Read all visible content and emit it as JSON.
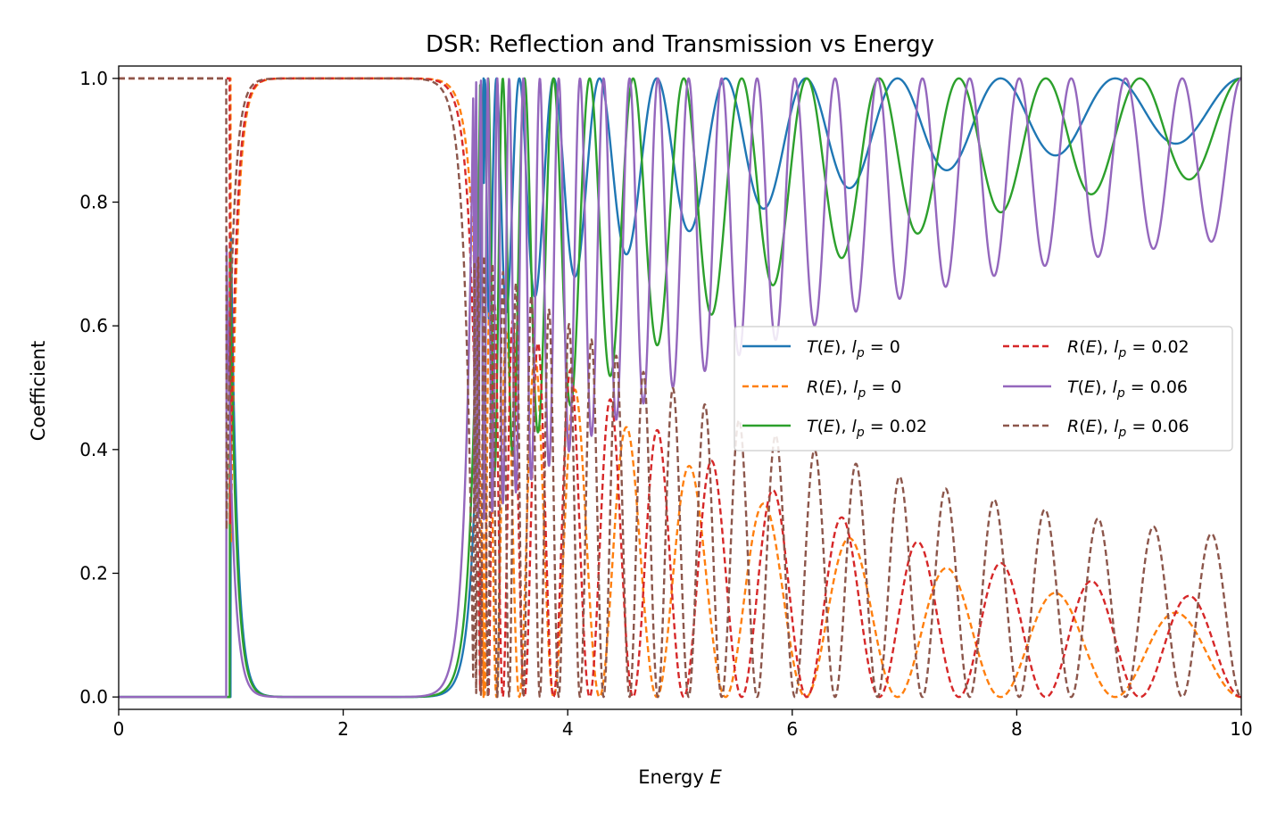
{
  "chart_data": {
    "type": "line",
    "title": "DSR: Reflection and Transmission vs Energy",
    "xlabel_text": "Energy ",
    "xlabel_var": "E",
    "ylabel": "Coefficient",
    "xlim": [
      0,
      10
    ],
    "ylim": [
      -0.02,
      1.02
    ],
    "xticks": [
      0,
      2,
      4,
      6,
      8,
      10
    ],
    "xtick_labels": [
      "0",
      "2",
      "4",
      "6",
      "8",
      "10"
    ],
    "yticks": [
      0.0,
      0.2,
      0.4,
      0.6,
      0.8,
      1.0
    ],
    "ytick_labels": [
      "0.0",
      "0.2",
      "0.4",
      "0.6",
      "0.8",
      "1.0"
    ],
    "legend_location": "center-right",
    "legend_columns": 2,
    "gap_region": {
      "start": 1.0,
      "end": 3.2,
      "value_T": 0.0,
      "value_R": 1.0
    },
    "series": [
      {
        "name": "T(E), l_p = 0",
        "label_fn": "T",
        "lp": "0",
        "kind": "T",
        "color": "#1f77b4",
        "dash": "solid",
        "params": {
          "E0": 1.0,
          "E1": 3.25,
          "depth_start": 0.4,
          "depth_end": 0.06,
          "cycles": 11.5,
          "phase": 0.0
        }
      },
      {
        "name": "R(E), l_p = 0",
        "label_fn": "R",
        "lp": "0",
        "kind": "R",
        "color": "#ff7f0e",
        "dash": "dashed",
        "params": {
          "E0": 1.0,
          "E1": 3.25,
          "depth_start": 0.63,
          "depth_end": 0.06,
          "cycles": 11.5,
          "phase": 0.0
        }
      },
      {
        "name": "T(E), l_p = 0.02",
        "label_fn": "T",
        "lp": "0.02",
        "kind": "T",
        "color": "#2ca02c",
        "dash": "solid",
        "params": {
          "E0": 0.99,
          "E1": 3.22,
          "depth_start": 0.66,
          "depth_end": 0.09,
          "cycles": 14.5,
          "phase": 0.0
        }
      },
      {
        "name": "R(E), l_p = 0.02",
        "label_fn": "R",
        "lp": "0.02",
        "kind": "R",
        "color": "#d62728",
        "dash": "dashed",
        "params": {
          "E0": 0.99,
          "E1": 3.22,
          "depth_start": 0.66,
          "depth_end": 0.09,
          "cycles": 14.5,
          "phase": 0.0
        }
      },
      {
        "name": "T(E), l_p = 0.06",
        "label_fn": "T",
        "lp": "0.06",
        "kind": "T",
        "color": "#9467bd",
        "dash": "solid",
        "params": {
          "E0": 0.96,
          "E1": 3.16,
          "depth_start": 0.73,
          "depth_end": 0.2,
          "cycles": 25.5,
          "phase": 0.0
        }
      },
      {
        "name": "R(E), l_p = 0.06",
        "label_fn": "R",
        "lp": "0.06",
        "kind": "R",
        "color": "#8c564b",
        "dash": "dashed",
        "params": {
          "E0": 0.96,
          "E1": 3.16,
          "depth_start": 0.73,
          "depth_end": 0.2,
          "cycles": 25.5,
          "phase": 0.0
        }
      }
    ]
  }
}
